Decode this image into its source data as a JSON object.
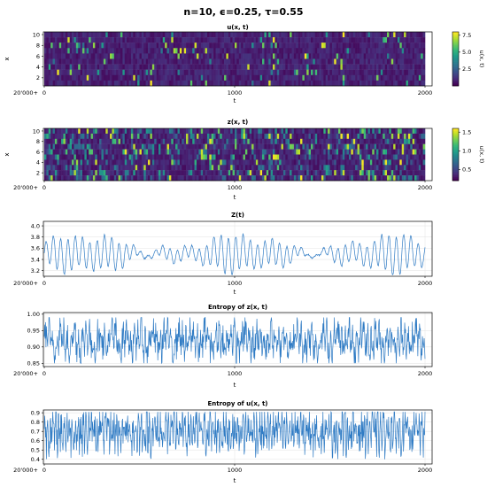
{
  "figure": {
    "suptitle": "n=10, ϵ=0.25, τ=0.55"
  },
  "chart_data": [
    {
      "type": "heatmap",
      "title": "u(x, t)",
      "xlabel": "t",
      "ylabel": "x",
      "x_offset_label": "20'000+",
      "x_range": [
        0,
        2000
      ],
      "xticks": [
        "0",
        "1000",
        "2000"
      ],
      "y_range": [
        0.5,
        10.5
      ],
      "yticks": [
        "2",
        "4",
        "6",
        "8",
        "10"
      ],
      "rows": 10,
      "colorbar": {
        "label": "u(x, t)",
        "range": [
          0,
          8
        ],
        "ticks": [
          "2.5",
          "5.0",
          "7.5"
        ],
        "colormap": "viridis"
      }
    },
    {
      "type": "heatmap",
      "title": "z(x, t)",
      "xlabel": "t",
      "ylabel": "x",
      "x_offset_label": "20'000+",
      "x_range": [
        0,
        2000
      ],
      "xticks": [
        "0",
        "1000",
        "2000"
      ],
      "y_range": [
        0.5,
        10.5
      ],
      "yticks": [
        "2",
        "4",
        "6",
        "8",
        "10"
      ],
      "rows": 10,
      "colorbar": {
        "label": "u(x, t)",
        "range": [
          0.2,
          1.6
        ],
        "ticks": [
          "0.5",
          "1.0",
          "1.5"
        ],
        "colormap": "viridis"
      }
    },
    {
      "type": "line",
      "title": "Z(t)",
      "xlabel": "t",
      "x_offset_label": "20'000+",
      "x_range": [
        0,
        2000
      ],
      "xticks": [
        "0",
        "1000",
        "2000"
      ],
      "y_range": [
        3.1,
        4.08
      ],
      "yticks": [
        "3.2",
        "3.4",
        "3.6",
        "3.8",
        "4.0"
      ],
      "grid": true,
      "color": "#2f7bc4",
      "series_approx": {
        "min": 3.13,
        "max": 4.03,
        "mean": 3.5
      }
    },
    {
      "type": "line",
      "title": "Entropy of z(x, t)",
      "xlabel": "t",
      "x_offset_label": "20'000+",
      "x_range": [
        0,
        2000
      ],
      "xticks": [
        "0",
        "1000",
        "2000"
      ],
      "y_range": [
        0.84,
        1.005
      ],
      "yticks": [
        "0.85",
        "0.90",
        "0.95",
        "1.00"
      ],
      "grid": true,
      "color": "#2f7bc4",
      "series_approx": {
        "min": 0.85,
        "max": 0.99,
        "mean": 0.92
      }
    },
    {
      "type": "line",
      "title": "Entropy of u(x, t)",
      "xlabel": "t",
      "x_offset_label": "20'000+",
      "x_range": [
        0,
        2000
      ],
      "xticks": [
        "0",
        "1000",
        "2000"
      ],
      "y_range": [
        0.35,
        0.93
      ],
      "yticks": [
        "0.4",
        "0.5",
        "0.6",
        "0.7",
        "0.8",
        "0.9"
      ],
      "grid": true,
      "color": "#2f7bc4",
      "series_approx": {
        "min": 0.4,
        "max": 0.91,
        "mean": 0.7
      }
    }
  ]
}
